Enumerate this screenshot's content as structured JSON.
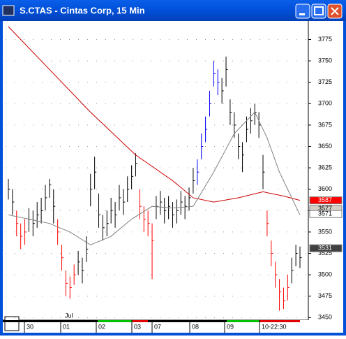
{
  "window": {
    "title": "S.CTAS - Cintas Corp, 15 Min"
  },
  "chart_data": {
    "type": "ohlc",
    "ylim": [
      3447,
      3795
    ],
    "yticks": [
      3775,
      3750,
      3725,
      3700,
      3675,
      3650,
      3625,
      3600,
      3575,
      3550,
      3525,
      3500,
      3475,
      3450
    ],
    "grid": true,
    "day_labels": [
      "30",
      "01",
      "02",
      "03",
      "07",
      "08",
      "09",
      "10-22:30"
    ],
    "month_label": "Jul",
    "high": [
      3612,
      3600,
      3575,
      3560,
      3565,
      3578,
      3575,
      3585,
      3590,
      3605,
      3612,
      3600,
      3565,
      3535,
      3505,
      3498,
      3512,
      3528,
      3520,
      3545,
      3618,
      3638,
      3595,
      3570,
      3575,
      3590,
      3585,
      3605,
      3600,
      3615,
      3628,
      3642,
      3600,
      3580,
      3575,
      3560,
      3592,
      3598,
      3590,
      3592,
      3585,
      3588,
      3598,
      3592,
      3602,
      3625,
      3635,
      3665,
      3685,
      3715,
      3750,
      3740,
      3730,
      3755,
      3705,
      3690,
      3665,
      3655,
      3685,
      3695,
      3700,
      3690,
      3640,
      3575,
      3540,
      3515,
      3495,
      3485,
      3500,
      3520,
      3535,
      3533
    ],
    "low": [
      3588,
      3570,
      3545,
      3530,
      3535,
      3550,
      3545,
      3555,
      3560,
      3575,
      3590,
      3560,
      3535,
      3505,
      3475,
      3472,
      3488,
      3500,
      3490,
      3515,
      3580,
      3600,
      3555,
      3540,
      3545,
      3560,
      3555,
      3575,
      3570,
      3585,
      3600,
      3615,
      3565,
      3550,
      3545,
      3495,
      3565,
      3570,
      3560,
      3565,
      3555,
      3560,
      3570,
      3565,
      3575,
      3595,
      3605,
      3635,
      3655,
      3685,
      3720,
      3710,
      3700,
      3720,
      3675,
      3660,
      3635,
      3620,
      3655,
      3665,
      3675,
      3660,
      3600,
      3545,
      3510,
      3485,
      3458,
      3460,
      3470,
      3490,
      3510,
      3508
    ],
    "close": [
      3600,
      3585,
      3560,
      3545,
      3550,
      3565,
      3560,
      3570,
      3575,
      3590,
      3605,
      3580,
      3550,
      3520,
      3490,
      3485,
      3500,
      3515,
      3505,
      3530,
      3600,
      3620,
      3570,
      3555,
      3560,
      3575,
      3570,
      3590,
      3585,
      3600,
      3615,
      3630,
      3580,
      3565,
      3560,
      3540,
      3580,
      3585,
      3575,
      3580,
      3570,
      3575,
      3585,
      3580,
      3590,
      3610,
      3620,
      3650,
      3670,
      3700,
      3735,
      3725,
      3715,
      3740,
      3690,
      3675,
      3650,
      3640,
      3670,
      3680,
      3690,
      3675,
      3620,
      3560,
      3525,
      3500,
      3480,
      3470,
      3485,
      3505,
      3525,
      3520
    ],
    "bar_colors": [
      "black",
      "black",
      "red",
      "red",
      "red",
      "black",
      "black",
      "black",
      "black",
      "black",
      "black",
      "black",
      "red",
      "red",
      "red",
      "red",
      "red",
      "black",
      "black",
      "black",
      "black",
      "black",
      "black",
      "black",
      "black",
      "black",
      "black",
      "black",
      "black",
      "black",
      "black",
      "black",
      "red",
      "red",
      "red",
      "red",
      "black",
      "black",
      "black",
      "black",
      "black",
      "black",
      "black",
      "black",
      "black",
      "black",
      "blue",
      "blue",
      "blue",
      "blue",
      "blue",
      "blue",
      "black",
      "black",
      "black",
      "black",
      "black",
      "black",
      "black",
      "black",
      "black",
      "black",
      "black",
      "red",
      "red",
      "red",
      "red",
      "red",
      "red",
      "black",
      "black",
      "black"
    ],
    "lines": [
      {
        "color": "#cc0000",
        "x": [
          0,
          10,
          20,
          31,
          40,
          45,
          50,
          56,
          62,
          67,
          71
        ],
        "values": [
          3790,
          3740,
          3690,
          3640,
          3610,
          3590,
          3585,
          3590,
          3597,
          3592,
          3587
        ]
      },
      {
        "color": "#808080",
        "x": [
          0,
          5,
          10,
          15,
          20,
          25,
          30,
          35,
          40,
          45,
          50,
          55,
          60,
          63,
          66,
          71
        ],
        "values": [
          3570,
          3565,
          3560,
          3550,
          3535,
          3545,
          3565,
          3580,
          3578,
          3580,
          3620,
          3665,
          3690,
          3660,
          3620,
          3570
        ]
      }
    ],
    "price_markers": [
      {
        "value": 3587,
        "color": "#ff0000",
        "text_color": "#ffffff"
      },
      {
        "value": 3577,
        "color": "#d4d0c8",
        "text_color": "#000000"
      },
      {
        "value": 3571,
        "color": "#ffffff",
        "text_color": "#000000"
      },
      {
        "value": 3531,
        "color": "#404040",
        "text_color": "#ffffff"
      }
    ]
  }
}
